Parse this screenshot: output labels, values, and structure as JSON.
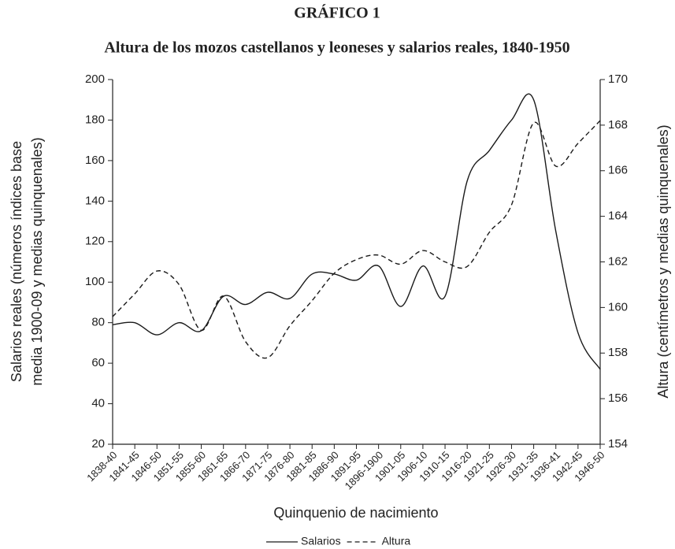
{
  "chart_data": {
    "type": "line",
    "title": "GRÁFICO 1",
    "subtitle": "Altura de los mozos castellanos y leoneses y salarios reales, 1840-1950",
    "xlabel": "Quinquenio de nacimiento",
    "ylabel": [
      "Salarios reales (números índices base",
      "media 1900-09 y medias quinquenales)"
    ],
    "y2label": "Altura (centímetros y medias quinquenales)",
    "categories": [
      "1838-40",
      "1841-45",
      "1846-50",
      "1851-55",
      "1855-60",
      "1861-65",
      "1866-70",
      "1871-75",
      "1876-80",
      "1881-85",
      "1886-90",
      "1891-95",
      "1896-1900",
      "1901-05",
      "1906-10",
      "1910-15",
      "1916-20",
      "1921-25",
      "1926-30",
      "1931-35",
      "1936-41",
      "1942-45",
      "1946-50"
    ],
    "series": [
      {
        "name": "Salarios",
        "color": "#1a1a1a",
        "style": "solid",
        "values": [
          79,
          80,
          74,
          80,
          76,
          93,
          89,
          95,
          92,
          104,
          104,
          101,
          108,
          88,
          108,
          93,
          150,
          165,
          180,
          190,
          125,
          75,
          57
        ]
      },
      {
        "name": "Altura",
        "color": "#1a1a1a",
        "style": "dashed",
        "axis": "y2",
        "values": [
          159.6,
          160.6,
          161.6,
          161,
          159,
          160.5,
          158.5,
          157.8,
          159.2,
          160.3,
          161.5,
          162.1,
          162.3,
          161.9,
          162.5,
          162,
          161.8,
          163.3,
          164.5,
          168.1,
          166.2,
          167.2,
          168.2
        ]
      }
    ],
    "ylim": [
      20,
      200
    ],
    "yticks": [
      20,
      40,
      60,
      80,
      100,
      120,
      140,
      160,
      180,
      200
    ],
    "y2lim": [
      154,
      170
    ],
    "y2ticks": [
      154,
      156,
      158,
      160,
      162,
      164,
      166,
      168,
      170
    ],
    "legend": "bottom"
  }
}
